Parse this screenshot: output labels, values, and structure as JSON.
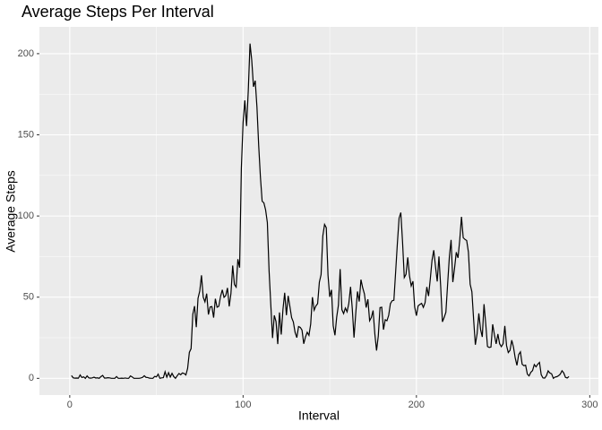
{
  "chart_data": {
    "type": "line",
    "title": "Average Steps Per Interval",
    "x_label": "Interval",
    "y_label": "Average Steps",
    "x": [
      1,
      2,
      3,
      4,
      5,
      6,
      7,
      8,
      9,
      10,
      11,
      12,
      13,
      14,
      15,
      16,
      17,
      18,
      19,
      20,
      21,
      22,
      23,
      24,
      25,
      26,
      27,
      28,
      29,
      30,
      31,
      32,
      33,
      34,
      35,
      36,
      37,
      38,
      39,
      40,
      41,
      42,
      43,
      44,
      45,
      46,
      47,
      48,
      49,
      50,
      51,
      52,
      53,
      54,
      55,
      56,
      57,
      58,
      59,
      60,
      61,
      62,
      63,
      64,
      65,
      66,
      67,
      68,
      69,
      70,
      71,
      72,
      73,
      74,
      75,
      76,
      77,
      78,
      79,
      80,
      81,
      82,
      83,
      84,
      85,
      86,
      87,
      88,
      89,
      90,
      91,
      92,
      93,
      94,
      95,
      96,
      97,
      98,
      99,
      100,
      101,
      102,
      103,
      104,
      105,
      106,
      107,
      108,
      109,
      110,
      111,
      112,
      113,
      114,
      115,
      116,
      117,
      118,
      119,
      120,
      121,
      122,
      123,
      124,
      125,
      126,
      127,
      128,
      129,
      130,
      131,
      132,
      133,
      134,
      135,
      136,
      137,
      138,
      139,
      140,
      141,
      142,
      143,
      144,
      145,
      146,
      147,
      148,
      149,
      150,
      151,
      152,
      153,
      154,
      155,
      156,
      157,
      158,
      159,
      160,
      161,
      162,
      163,
      164,
      165,
      166,
      167,
      168,
      169,
      170,
      171,
      172,
      173,
      174,
      175,
      176,
      177,
      178,
      179,
      180,
      181,
      182,
      183,
      184,
      185,
      186,
      187,
      188,
      189,
      190,
      191,
      192,
      193,
      194,
      195,
      196,
      197,
      198,
      199,
      200,
      201,
      202,
      203,
      204,
      205,
      206,
      207,
      208,
      209,
      210,
      211,
      212,
      213,
      214,
      215,
      216,
      217,
      218,
      219,
      220,
      221,
      222,
      223,
      224,
      225,
      226,
      227,
      228,
      229,
      230,
      231,
      232,
      233,
      234,
      235,
      236,
      237,
      238,
      239,
      240,
      241,
      242,
      243,
      244,
      245,
      246,
      247,
      248,
      249,
      250,
      251,
      252,
      253,
      254,
      255,
      256,
      257,
      258,
      259,
      260,
      261,
      262,
      263,
      264,
      265,
      266,
      267,
      268,
      269,
      270,
      271,
      272,
      273,
      274,
      275,
      276,
      277,
      278,
      279,
      280,
      281,
      282,
      283,
      284,
      285,
      286,
      287,
      288
    ],
    "series": [
      {
        "color": "#000000",
        "values": [
          1.7,
          0.3,
          0.1,
          0.2,
          0.1,
          2.1,
          0.5,
          0.9,
          0,
          1.5,
          0.3,
          0.1,
          0.3,
          0.7,
          0.2,
          0.3,
          0,
          1.1,
          1.8,
          0.2,
          0.2,
          0.4,
          0.3,
          0,
          0,
          0,
          1.1,
          0,
          0,
          0.1,
          0,
          0.2,
          0,
          0,
          1.5,
          0.9,
          0,
          0,
          0,
          0,
          0.2,
          0.6,
          1.6,
          0.6,
          0.5,
          0.1,
          0,
          0,
          1.2,
          0.9,
          2.6,
          0,
          0.3,
          0.4,
          4.1,
          0.7,
          3.5,
          0.8,
          3.1,
          1.1,
          0,
          1.6,
          3,
          2.2,
          3.3,
          3,
          2.1,
          6.1,
          16,
          18.3,
          39.5,
          44.5,
          31.5,
          49.3,
          53.8,
          63.5,
          50,
          47.1,
          52.2,
          39.3,
          44,
          44.2,
          37.4,
          49,
          43.8,
          44.4,
          50.5,
          54.5,
          49.9,
          51,
          55.7,
          44.3,
          52.3,
          69.5,
          57.8,
          56.2,
          73.4,
          68.2,
          129.4,
          157.5,
          171.2,
          155.4,
          177.3,
          206.2,
          195.9,
          179.6,
          183.4,
          167,
          143.5,
          124,
          109.1,
          108.1,
          103.7,
          96,
          66.2,
          45.2,
          24.8,
          38.8,
          35,
          21.1,
          40.6,
          27,
          42.4,
          52.7,
          38.9,
          50.8,
          44.3,
          37.4,
          34.7,
          28.3,
          25.1,
          31.9,
          31.4,
          29.7,
          21.3,
          25.5,
          28.4,
          26.5,
          33.4,
          50,
          42,
          44.6,
          46,
          59.2,
          63.9,
          87.7,
          94.8,
          92.8,
          63.4,
          50.2,
          54.5,
          32.4,
          26.5,
          37.7,
          45.1,
          67.3,
          42.3,
          39.9,
          43.3,
          41,
          46.2,
          56.4,
          42.8,
          25.1,
          40,
          53.5,
          47.3,
          60.8,
          55.8,
          52,
          43.6,
          48.7,
          35.5,
          37.5,
          41.8,
          27.5,
          17.1,
          26.1,
          43.6,
          43.8,
          30,
          36.1,
          35.5,
          38.8,
          46,
          47.8,
          48.1,
          65.3,
          82.9,
          98.7,
          102.1,
          84,
          62.1,
          64.1,
          74.5,
          63.2,
          56.9,
          59.8,
          43.9,
          38.6,
          44.7,
          45.5,
          46.2,
          43.7,
          46.6,
          56.3,
          50.7,
          61.2,
          72.7,
          78.9,
          68.9,
          59.7,
          75.1,
          56.5,
          34.8,
          37.5,
          40.7,
          58,
          74.7,
          85.3,
          59.3,
          67.8,
          77.7,
          74.2,
          85.3,
          99.5,
          86.6,
          85.6,
          84.9,
          77.8,
          58,
          53.4,
          36.3,
          20.7,
          27.4,
          40,
          30.2,
          25.5,
          45.7,
          33.5,
          19.6,
          19,
          19.3,
          33.3,
          26.8,
          21.2,
          27.3,
          21.3,
          19.5,
          21.3,
          32.3,
          20.2,
          15.9,
          17.2,
          23.5,
          19.2,
          12.5,
          8,
          14.7,
          16.3,
          8.7,
          7.8,
          8.1,
          2.6,
          1.5,
          3.7,
          4.8,
          8.5,
          7.1,
          8.7,
          9.8,
          2.2,
          0.3,
          0.1,
          1.6,
          4.6,
          3.3,
          2.8,
          0,
          0.8,
          1,
          1.6,
          2.6,
          4.7,
          3.3,
          0.6,
          0.2,
          1.1
        ]
      }
    ],
    "xlim": [
      -17.5,
      305
    ],
    "xticks": [
      0,
      100,
      200,
      300
    ],
    "ylim": [
      -10.3,
      216.5
    ],
    "yticks": [
      0,
      50,
      100,
      150,
      200
    ],
    "grid": true,
    "background": "#ebebeb"
  }
}
